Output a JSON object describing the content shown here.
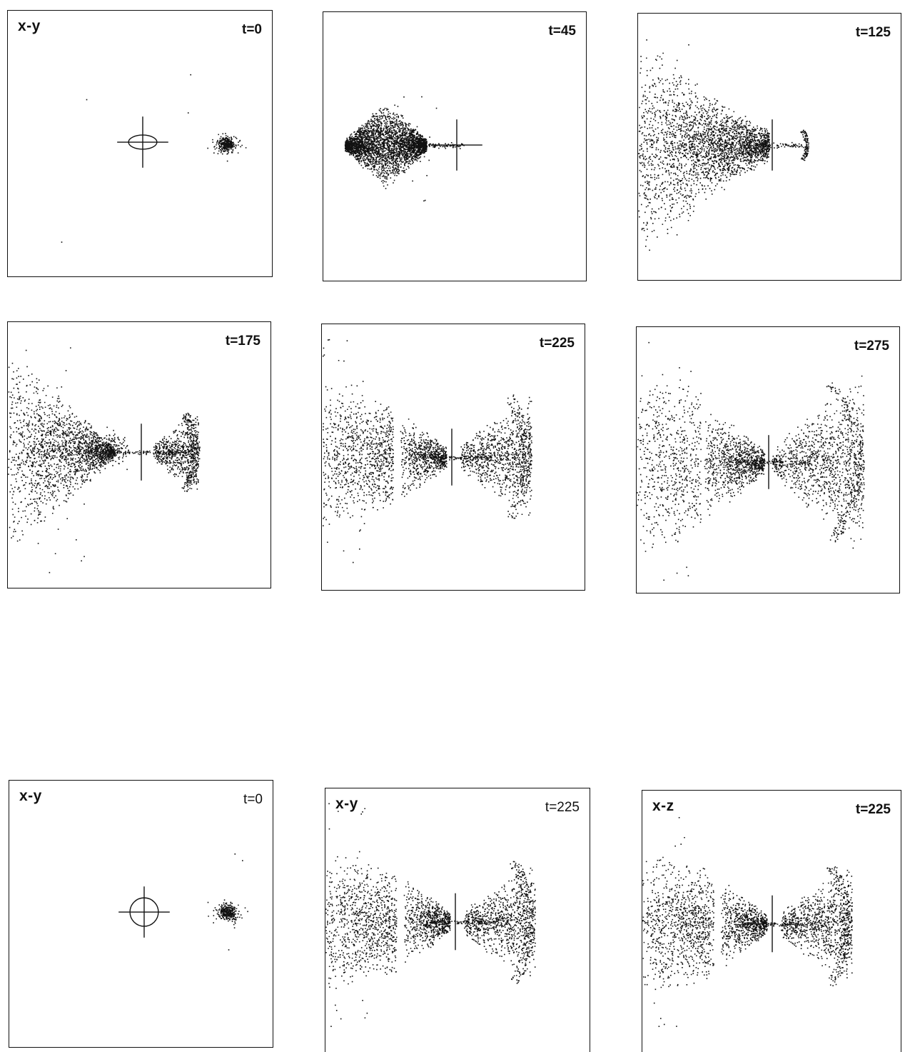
{
  "colors": {
    "ink": "#111111",
    "paper": "#ffffff"
  },
  "panels": [
    {
      "id": "p1",
      "plane": "x-y",
      "time": "t=0",
      "state": "initial-ellipse"
    },
    {
      "id": "p2",
      "plane": "",
      "time": "t=45",
      "state": "compressed"
    },
    {
      "id": "p3",
      "plane": "",
      "time": "t=125",
      "state": "jet"
    },
    {
      "id": "p4",
      "plane": "",
      "time": "t=175",
      "state": "cone"
    },
    {
      "id": "p5",
      "plane": "",
      "time": "t=225",
      "state": "bipolar"
    },
    {
      "id": "p6",
      "plane": "",
      "time": "t=275",
      "state": "bipolar-wide"
    },
    {
      "id": "p7",
      "plane": "x-y",
      "time": "t=0",
      "state": "initial-circle"
    },
    {
      "id": "p8",
      "plane": "x-y",
      "time": "t=225",
      "state": "bipolar"
    },
    {
      "id": "p9",
      "plane": "x-z",
      "time": "t=225",
      "state": "bipolar"
    }
  ]
}
